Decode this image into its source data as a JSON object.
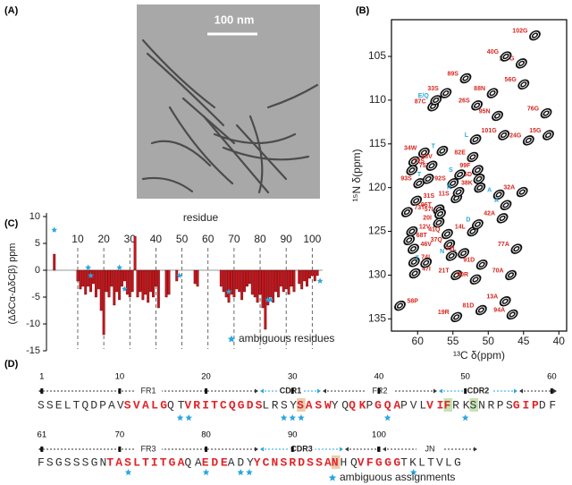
{
  "panels": {
    "a": "(A)",
    "b": "(B)",
    "c": "(C)",
    "d": "(D)"
  },
  "micrograph": {
    "scale_bar": "100 nm"
  },
  "chart_data": [
    {
      "type": "scatter",
      "xlabel": "¹³C δ(ppm)",
      "ylabel": "¹⁵N δ(ppm)",
      "xlim": [
        63.7,
        38.9
      ],
      "ylim": [
        136.4,
        100.8
      ],
      "xticks": [
        60,
        55,
        50,
        45,
        40
      ],
      "yticks": [
        105,
        110,
        115,
        120,
        125,
        130,
        135
      ],
      "series": [
        {
          "color": "#d7261e",
          "labels": [
            "102G",
            "100G",
            "40G",
            "56G",
            "89S",
            "33S",
            "87C",
            "88N",
            "26S",
            "95N",
            "76G",
            "15G",
            "101G",
            "24G",
            "34W",
            "18V",
            "75T",
            "71S",
            "82E",
            "99F",
            "25D",
            "38K",
            "93S",
            "92S",
            "32A",
            "31S",
            "11S",
            "96T",
            "57I",
            "20I",
            "42A",
            "73T",
            "14L",
            "41Q",
            "12V",
            "68T",
            "37Q",
            "46V",
            "72L",
            "77A",
            "74I",
            "91D",
            "47I",
            "21T",
            "90R",
            "70A",
            "58P",
            "13A",
            "94A",
            "81D",
            "19R"
          ],
          "x": [
            43.4,
            45.3,
            47.5,
            45.0,
            53.2,
            56.0,
            57.8,
            49.4,
            51.6,
            48.7,
            41.8,
            41.5,
            47.8,
            44.3,
            59.1,
            60.5,
            60.8,
            58.0,
            52.2,
            51.5,
            51.3,
            51.2,
            59.8,
            55.0,
            45.2,
            60.2,
            54.5,
            57.0,
            56.8,
            57.0,
            48.0,
            61.5,
            52.2,
            55.8,
            60.8,
            61.2,
            55.5,
            60.6,
            53.5,
            46.0,
            60.5,
            50.9,
            60.4,
            54.5,
            51.8,
            46.8,
            62.5,
            47.6,
            46.6,
            51.0,
            54.5
          ],
          "values": [
            102.6,
            105.8,
            105.0,
            108.2,
            107.5,
            109.2,
            110.7,
            109.2,
            110.6,
            111.8,
            111.5,
            114.0,
            114.0,
            114.6,
            116.0,
            117.0,
            118.0,
            117.5,
            116.5,
            118.0,
            119.0,
            120.0,
            119.5,
            119.5,
            120.5,
            121.5,
            121.2,
            122.5,
            123.0,
            124.0,
            123.5,
            122.8,
            125.0,
            125.3,
            125.0,
            126.0,
            126.5,
            127.0,
            127.5,
            127.0,
            128.5,
            128.8,
            129.8,
            130.0,
            130.5,
            130.0,
            133.5,
            133.0,
            134.5,
            134.0,
            134.8
          ]
        },
        {
          "color": "#2aa6dc",
          "labels": [
            "E/Q",
            "L",
            "T",
            "T",
            "S",
            "R",
            "A",
            "A",
            "D",
            "T",
            "N"
          ],
          "x": [
            57.4,
            51.8,
            56.5,
            58.5,
            54.0,
            54.2,
            48.5,
            47.5,
            51.5,
            58.8,
            55.2
          ],
          "values": [
            110.0,
            114.5,
            115.8,
            119.0,
            118.5,
            120.5,
            120.8,
            122.0,
            124.2,
            128.6,
            127.8
          ]
        }
      ]
    },
    {
      "type": "bar",
      "xlabel": "residue",
      "ylabel": "(ΔδCα-ΔδCβ) ppm",
      "xlim": [
        -2,
        104
      ],
      "ylim": [
        -15,
        10
      ],
      "xticks": [
        10,
        20,
        30,
        40,
        50,
        60,
        70,
        80,
        90,
        100
      ],
      "yticks": [
        10,
        5,
        0,
        -5,
        -10,
        -15
      ],
      "grid": true,
      "color": "#c8161d",
      "x": [
        1,
        10,
        11,
        12,
        13,
        14,
        15,
        16,
        17,
        18,
        19,
        20,
        21,
        22,
        23,
        24,
        25,
        26,
        27,
        28,
        29,
        30,
        31,
        32,
        33,
        34,
        35,
        36,
        37,
        38,
        39,
        40,
        41,
        44,
        45,
        48,
        55,
        56,
        65,
        66,
        67,
        68,
        69,
        70,
        71,
        72,
        73,
        74,
        75,
        76,
        77,
        78,
        79,
        80,
        81,
        82,
        83,
        84,
        85,
        86,
        87,
        88,
        89,
        90,
        91,
        92,
        93,
        95,
        96,
        97,
        98,
        99,
        100,
        101,
        102
      ],
      "values": [
        3.0,
        -2.0,
        -3.5,
        -3.0,
        -4.5,
        -3.0,
        -4.0,
        -2.5,
        -5.0,
        -3.5,
        -7.5,
        -12.0,
        -4.0,
        -5.0,
        -3.0,
        -6.5,
        -4.0,
        -5.5,
        -3.0,
        -2.0,
        -4.5,
        -5.0,
        -4.0,
        6.3,
        -5.0,
        -4.0,
        -5.5,
        -4.5,
        -6.0,
        -4.0,
        -5.0,
        -3.0,
        -7.0,
        -5.0,
        -4.5,
        -2.0,
        -2.5,
        -3.0,
        -3.0,
        -4.0,
        -5.0,
        -6.0,
        -4.5,
        -5.0,
        -3.5,
        -4.0,
        -5.5,
        -4.0,
        -3.0,
        -2.5,
        -4.5,
        -5.0,
        -6.0,
        -4.5,
        -7.0,
        -11.0,
        -6.5,
        -5.0,
        -6.0,
        -4.0,
        -5.0,
        -3.0,
        -4.0,
        -3.5,
        -4.5,
        -3.0,
        -4.0,
        -2.5,
        -3.5,
        -2.0,
        -3.0,
        -1.5,
        -1.0,
        -2.0,
        -1.0
      ],
      "markers": {
        "name": "ambiguous residues",
        "color": "#2aa6dc",
        "x": [
          1,
          14,
          15,
          26,
          28,
          49,
          68,
          83,
          84,
          103
        ],
        "values": [
          7.5,
          0.5,
          -1.0,
          0.5,
          -3.5,
          -1.0,
          -4.0,
          -5.5,
          -5.5,
          -2.0
        ]
      }
    }
  ],
  "sequence": {
    "colors": {
      "plain": "#333333",
      "bold-red": "#e0262a",
      "cdr": "#2aa6dc"
    },
    "rows": [
      {
        "numbers": [
          1,
          10,
          20,
          30,
          40,
          50,
          60
        ],
        "segments": [
          {
            "text": "SSELTQDPAV",
            "style": "plain"
          },
          {
            "text": "SVALG",
            "style": "bold-red"
          },
          {
            "text": "QT",
            "style": "plain"
          },
          {
            "text": "VRITCQGDS",
            "style": "bold-red"
          },
          {
            "text": "LRSY",
            "style": "plain"
          },
          {
            "text": "S",
            "style": "bold-red",
            "highlight": "#e9cfae"
          },
          {
            "text": "ASW",
            "style": "bold-red"
          },
          {
            "text": "YQ",
            "style": "plain"
          },
          {
            "text": "QK",
            "style": "bold-red"
          },
          {
            "text": "P",
            "style": "plain"
          },
          {
            "text": "GQA",
            "style": "bold-red"
          },
          {
            "text": "PVL",
            "style": "plain"
          },
          {
            "text": "VI",
            "style": "bold-red"
          },
          {
            "text": "F",
            "style": "bold-red",
            "highlight": "#c5e3b3"
          },
          {
            "text": "RK",
            "style": "plain"
          },
          {
            "text": "S",
            "style": "plain",
            "highlight": "#c5e3b3"
          },
          {
            "text": "NRPS",
            "style": "plain"
          },
          {
            "text": "GIP",
            "style": "bold-red"
          },
          {
            "text": "DF",
            "style": "plain"
          }
        ]
      },
      {
        "numbers": [
          61,
          70,
          80,
          90,
          100
        ],
        "segments": [
          {
            "text": "FSGSSSGN",
            "style": "plain"
          },
          {
            "text": "TASLTITGA",
            "style": "bold-red"
          },
          {
            "text": "QA",
            "style": "plain"
          },
          {
            "text": "EDE",
            "style": "bold-red"
          },
          {
            "text": "ADY",
            "style": "plain"
          },
          {
            "text": "YCNSRDSSA",
            "style": "bold-red"
          },
          {
            "text": "N",
            "style": "bold-red",
            "highlight": "#e9cfae"
          },
          {
            "text": "HQ",
            "style": "plain"
          },
          {
            "text": "VFGGG",
            "style": "bold-red"
          },
          {
            "text": "TKLTVLG",
            "style": "plain"
          }
        ]
      }
    ],
    "regions": [
      {
        "label": "FR1"
      },
      {
        "label": "CDR1",
        "cdr": true
      },
      {
        "label": "FR2"
      },
      {
        "label": "CDR2",
        "cdr": true
      },
      {
        "label": "FR3"
      },
      {
        "label": "CDR3",
        "cdr": true
      },
      {
        "label": "JN"
      }
    ],
    "ambiguous": [
      17,
      18,
      29,
      30,
      31,
      41,
      50,
      71,
      80,
      84,
      85,
      104
    ],
    "legend": "ambiguous assignments"
  }
}
